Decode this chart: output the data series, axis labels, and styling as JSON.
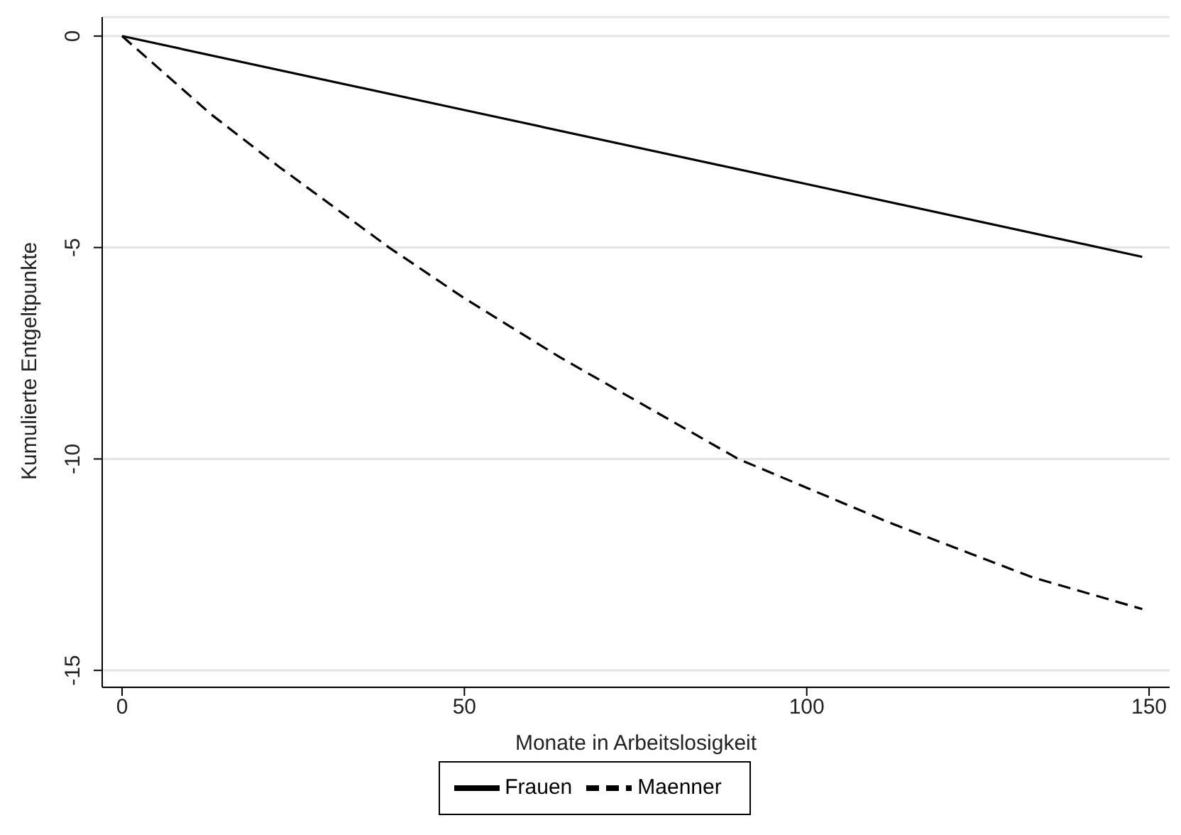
{
  "chart_data": {
    "type": "line",
    "xlabel": "Monate in Arbeitslosigkeit",
    "ylabel": "Kumulierte Entgeltpunkte",
    "xlim": [
      -2.9,
      153
    ],
    "ylim": [
      -15.4,
      0.45
    ],
    "xticks": [
      0,
      50,
      100,
      150
    ],
    "yticks": [
      0,
      -5,
      -10,
      -15
    ],
    "grid": "y",
    "legend": "bottom",
    "marker": "none",
    "series": [
      {
        "name": "Frauen",
        "color": "#000000",
        "line_style": "solid",
        "x": [
          0,
          50,
          100,
          149
        ],
        "values": [
          0,
          -1.75,
          -3.5,
          -5.22
        ]
      },
      {
        "name": "Maenner",
        "color": "#000000",
        "line_style": "dashed",
        "x": [
          0,
          13,
          23,
          39,
          50,
          64,
          90,
          112,
          133,
          149
        ],
        "values": [
          0,
          -1.85,
          -3.1,
          -5.0,
          -6.2,
          -7.6,
          -10.0,
          -11.5,
          -12.8,
          -13.55
        ]
      }
    ]
  }
}
